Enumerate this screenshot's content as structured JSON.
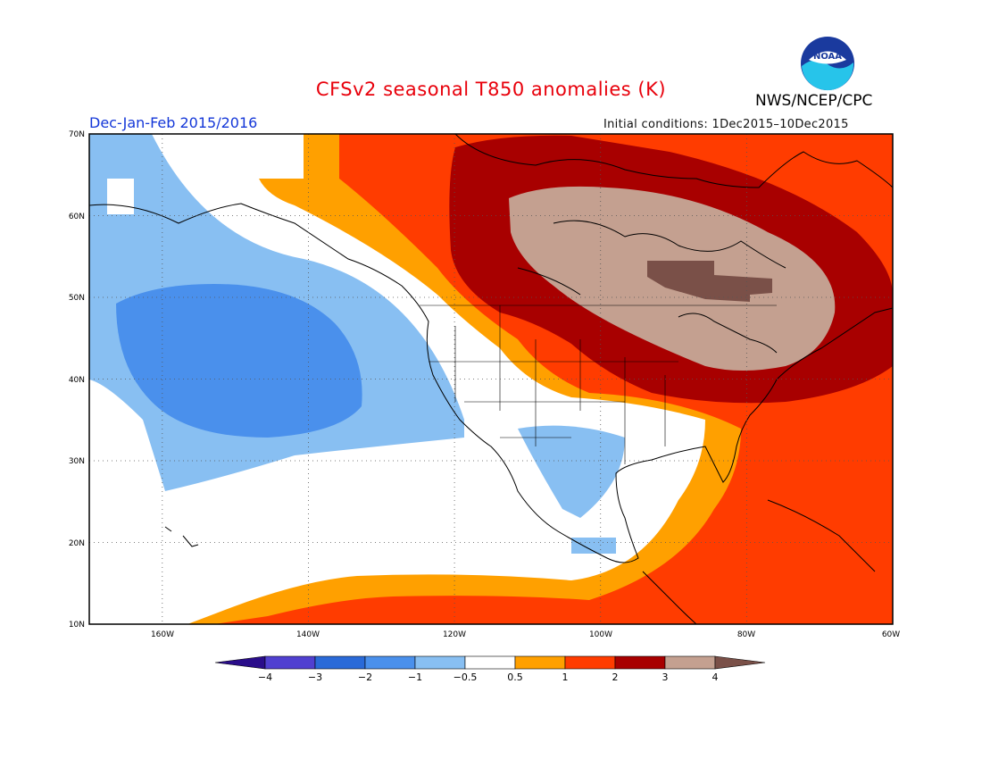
{
  "header": {
    "title": "CFSv2 seasonal T850 anomalies (K)",
    "agency": "NWS/NCEP/CPC",
    "logo_text": "NOAA",
    "season": "Dec-Jan-Feb 2015/2016",
    "initial_conditions": "Initial conditions: 1Dec2015–10Dec2015"
  },
  "map": {
    "projection": "equirectangular",
    "lon_range": [
      -170,
      -60
    ],
    "lat_range": [
      10,
      70
    ],
    "lat_labels": [
      "70N",
      "60N",
      "50N",
      "40N",
      "30N",
      "20N",
      "10N"
    ],
    "lon_labels": [
      "160W",
      "140W",
      "120W",
      "100W",
      "80W",
      "60W"
    ],
    "grid": "dotted"
  },
  "colorbar": {
    "ticks": [
      "−4",
      "−3",
      "−2",
      "−1",
      "−0.5",
      "0.5",
      "1",
      "2",
      "3",
      "4"
    ],
    "colors": [
      "#2a0d8a",
      "#5040d0",
      "#2a6ad8",
      "#4a90ec",
      "#88bff2",
      "#ffffff",
      "#ffa000",
      "#ff3c00",
      "#a80000",
      "#c4a090",
      "#7a5048"
    ]
  }
}
